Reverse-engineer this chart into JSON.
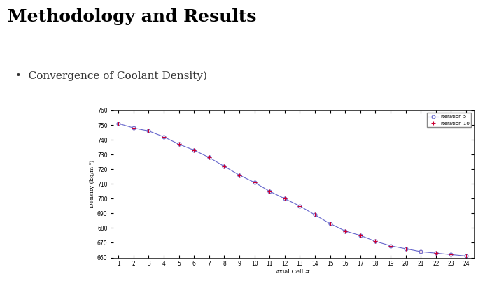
{
  "title": "Methodology and Results",
  "bullet": "•  Convergence of Coolant Density)",
  "xlabel": "Axial Cell #",
  "ylabel": "Density (kg/m ³)",
  "xlim_min": 0.5,
  "xlim_max": 24.5,
  "ylim": [
    660,
    760
  ],
  "yticks": [
    660,
    670,
    680,
    690,
    700,
    710,
    720,
    730,
    740,
    750,
    760
  ],
  "xticks": [
    1,
    2,
    3,
    4,
    5,
    6,
    7,
    8,
    9,
    10,
    11,
    12,
    13,
    14,
    15,
    16,
    17,
    18,
    19,
    20,
    21,
    22,
    23,
    24
  ],
  "legend_labels": [
    "Iteration 5",
    "Iteration 10"
  ],
  "line1_color": "#6666CC",
  "line2_color": "#CC0033",
  "background_color": "#ffffff",
  "teal_bar_color": "#4AAFB0",
  "axial_cells": [
    1,
    2,
    3,
    4,
    5,
    6,
    7,
    8,
    9,
    10,
    11,
    12,
    13,
    14,
    15,
    16,
    17,
    18,
    19,
    20,
    21,
    22,
    23,
    24
  ],
  "density_vals": [
    751,
    748,
    746,
    742,
    737,
    733,
    728,
    722,
    716,
    711,
    705,
    700,
    695,
    689,
    683,
    678,
    675,
    671,
    668,
    666,
    664,
    663,
    662,
    661
  ],
  "title_fontsize": 18,
  "bullet_fontsize": 11,
  "axis_label_fontsize": 6,
  "tick_fontsize": 5.5,
  "legend_fontsize": 5
}
